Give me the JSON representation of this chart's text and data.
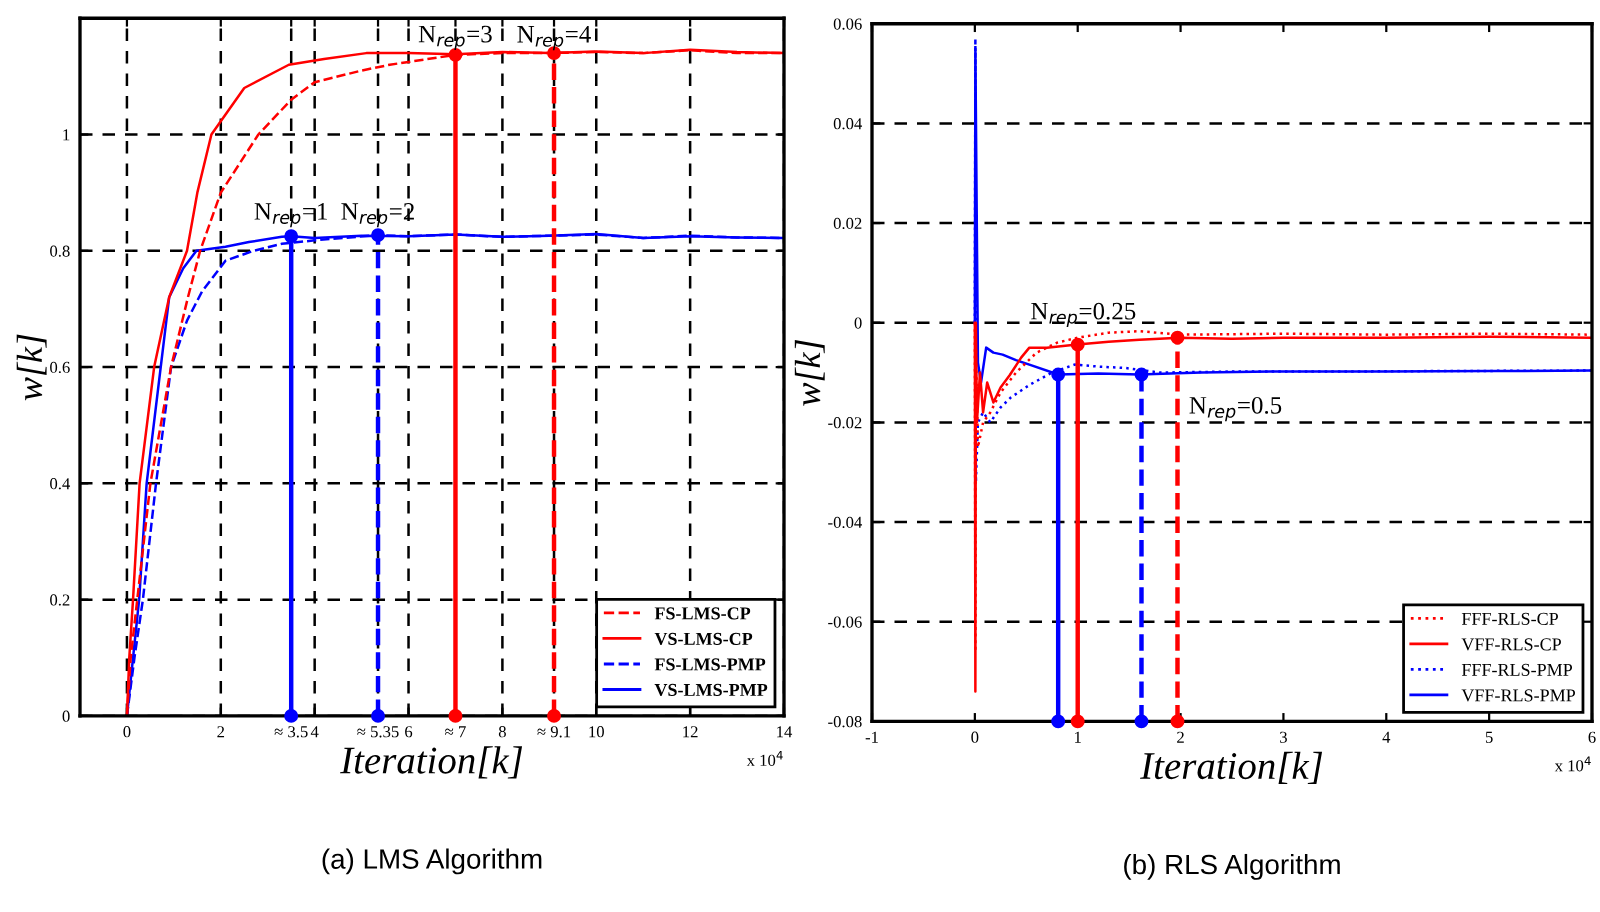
{
  "chart_data": [
    {
      "type": "line",
      "title": "(a) LMS Algorithm",
      "xlabel": "Iteration[k]",
      "ylabel": "w[k]",
      "xlim": [
        -1,
        14
      ],
      "ylim": [
        0,
        1.2
      ],
      "xticks": [
        0,
        2,
        {
          "value": 3.5,
          "label": "≈ 3.5"
        },
        4,
        {
          "value": 5.35,
          "label": "≈ 5.35"
        },
        6,
        {
          "value": 7,
          "label": "≈ 7"
        },
        8,
        {
          "value": 9.1,
          "label": "≈ 9.1"
        },
        10,
        12,
        14
      ],
      "yticks": [
        0,
        0.2,
        0.4,
        0.6,
        0.8,
        1
      ],
      "grid": true,
      "legend": "bottom right",
      "series": [
        {
          "name": "FS-LMS-CP",
          "color": "#ff0000",
          "line_style": "dashed",
          "x": [
            0,
            0.08,
            0.22,
            0.5,
            0.94,
            1.3,
            1.56,
            2.0,
            2.8,
            3.5,
            4.0,
            5.0,
            5.6,
            7,
            8,
            9,
            10,
            11,
            12,
            13,
            14
          ],
          "values": [
            0,
            0.1,
            0.2,
            0.4,
            0.6,
            0.72,
            0.8,
            0.9,
            1.0,
            1.06,
            1.09,
            1.11,
            1.12,
            1.137,
            1.14,
            1.14,
            1.142,
            1.14,
            1.145,
            1.14,
            1.14
          ]
        },
        {
          "name": "VS-LMS-CP",
          "color": "#ff0000",
          "line_style": "solid",
          "x": [
            0,
            0.05,
            0.13,
            0.27,
            0.58,
            0.9,
            1.28,
            1.5,
            1.8,
            2.5,
            3.45,
            4.2,
            5.1,
            6,
            7,
            8,
            9,
            10,
            11,
            12,
            13,
            14
          ],
          "values": [
            0,
            0.1,
            0.2,
            0.4,
            0.6,
            0.72,
            0.8,
            0.9,
            1.0,
            1.08,
            1.12,
            1.13,
            1.14,
            1.14,
            1.138,
            1.142,
            1.14,
            1.143,
            1.14,
            1.146,
            1.142,
            1.14
          ]
        },
        {
          "name": "FS-LMS-PMP",
          "color": "#0000ff",
          "line_style": "dashed",
          "x": [
            0,
            0.16,
            0.34,
            0.62,
            0.94,
            1.28,
            1.6,
            2.1,
            2.7,
            3.3,
            4,
            5.35,
            6,
            7,
            8,
            9,
            10,
            11,
            12,
            13,
            14
          ],
          "values": [
            0,
            0.1,
            0.2,
            0.4,
            0.6,
            0.68,
            0.73,
            0.783,
            0.8,
            0.812,
            0.818,
            0.827,
            0.825,
            0.828,
            0.824,
            0.826,
            0.828,
            0.822,
            0.826,
            0.823,
            0.822
          ]
        },
        {
          "name": "VS-LMS-PMP",
          "color": "#0000ff",
          "line_style": "solid",
          "x": [
            0,
            0.13,
            0.26,
            0.42,
            0.9,
            1.2,
            1.48,
            2.1,
            2.6,
            3.3,
            3.5,
            4,
            5,
            6,
            7,
            8,
            9,
            10,
            11,
            12,
            13,
            14
          ],
          "values": [
            0,
            0.1,
            0.2,
            0.4,
            0.72,
            0.77,
            0.8,
            0.807,
            0.815,
            0.824,
            0.825,
            0.822,
            0.826,
            0.825,
            0.828,
            0.824,
            0.826,
            0.829,
            0.822,
            0.825,
            0.823,
            0.822
          ]
        },
        {
          "color": "#0000ff",
          "line_style": "solid",
          "marker": "circle",
          "x": [
            3.5,
            3.5
          ],
          "values": [
            0,
            0.825
          ]
        },
        {
          "color": "#0000ff",
          "line_style": "dashed",
          "marker": "circle",
          "x": [
            5.35,
            5.35
          ],
          "values": [
            0,
            0.827
          ]
        },
        {
          "color": "#ff0000",
          "line_style": "solid",
          "marker": "circle",
          "x": [
            7,
            7
          ],
          "values": [
            0,
            1.137
          ]
        },
        {
          "color": "#ff0000",
          "line_style": "dashed",
          "marker": "circle",
          "x": [
            9.1,
            9.1
          ],
          "values": [
            0,
            1.14
          ]
        }
      ],
      "annotations": [
        {
          "text": "N$_{rep}$=1",
          "x": 3.5,
          "y": 0.84
        },
        {
          "text": "N$_{rep}$=2",
          "x": 5.35,
          "y": 0.84
        },
        {
          "text": "N$_{rep}$=3",
          "x": 7,
          "y": 1.145
        },
        {
          "text": "N$_{rep}$=4",
          "x": 9.1,
          "y": 1.145
        },
        "x 10$^{4}$"
      ]
    },
    {
      "type": "line",
      "title": "(b) RLS Algorithm",
      "xlabel": "Iteration[k]",
      "ylabel": "w[k]",
      "xlim": [
        -1,
        6
      ],
      "ylim": [
        -0.08,
        0.06
      ],
      "xticks": [
        -1,
        0,
        1,
        2,
        3,
        4,
        5,
        6
      ],
      "yticks": [
        -0.08,
        -0.06,
        -0.04,
        -0.02,
        0,
        0.02,
        0.04,
        0.06
      ],
      "grid": "y",
      "legend": "bottom right",
      "series": [
        {
          "name": "FFF-RLS-CP",
          "color": "#ff0000",
          "line_style": "dotted",
          "x": [
            0,
            0.005,
            0.01,
            0.03,
            0.08,
            0.15,
            0.25,
            0.4,
            0.6,
            0.8,
            1.0,
            1.3,
            1.6,
            2,
            3,
            4,
            5,
            6
          ],
          "values": [
            0,
            -0.066,
            -0.005,
            -0.025,
            -0.02,
            -0.018,
            -0.014,
            -0.01,
            -0.006,
            -0.004,
            -0.003,
            -0.002,
            -0.0017,
            -0.0024,
            -0.0022,
            -0.0024,
            -0.0022,
            -0.0024
          ]
        },
        {
          "name": "VFF-RLS-CP",
          "color": "#ff0000",
          "line_style": "solid",
          "x": [
            0,
            0.005,
            0.01,
            0.02,
            0.05,
            0.08,
            0.12,
            0.18,
            0.25,
            0.34,
            0.45,
            0.53,
            0.7,
            0.97,
            1.3,
            1.6,
            1.99,
            2.5,
            3,
            4,
            5,
            6
          ],
          "values": [
            0,
            -0.074,
            0.0,
            -0.02,
            -0.01,
            -0.018,
            -0.012,
            -0.016,
            -0.013,
            -0.0105,
            -0.007,
            -0.005,
            -0.005,
            -0.0044,
            -0.0038,
            -0.0034,
            -0.003,
            -0.0032,
            -0.003,
            -0.003,
            -0.0028,
            -0.003
          ]
        },
        {
          "name": "FFF-RLS-PMP",
          "color": "#0000ff",
          "line_style": "dotted",
          "x": [
            0,
            0.005,
            0.01,
            0.03,
            0.08,
            0.15,
            0.25,
            0.35,
            0.53,
            0.75,
            0.97,
            1.2,
            1.47,
            1.8,
            2.5,
            3.5,
            4.5,
            6
          ],
          "values": [
            0,
            0.057,
            -0.032,
            -0.02,
            -0.018,
            -0.02,
            -0.017,
            -0.015,
            -0.0125,
            -0.01,
            -0.0084,
            -0.0088,
            -0.0091,
            -0.01,
            -0.0098,
            -0.0098,
            -0.0097,
            -0.0096
          ]
        },
        {
          "name": "VFF-RLS-PMP",
          "color": "#0000ff",
          "line_style": "solid",
          "x": [
            0,
            0.005,
            0.03,
            0.06,
            0.11,
            0.18,
            0.27,
            0.4,
            0.53,
            0.81,
            1.2,
            1.6,
            2.2,
            2.88,
            4,
            5,
            6
          ],
          "values": [
            0,
            0.055,
            -0.008,
            -0.012,
            -0.005,
            -0.006,
            -0.0064,
            -0.0075,
            -0.0084,
            -0.0104,
            -0.0102,
            -0.0104,
            -0.01,
            -0.0098,
            -0.0098,
            -0.0097,
            -0.0096
          ]
        },
        {
          "color": "#0000ff",
          "line_style": "solid",
          "marker": "circle",
          "x": [
            0.81,
            0.81
          ],
          "values": [
            -0.08,
            -0.0104
          ]
        },
        {
          "color": "#ff0000",
          "line_style": "solid",
          "marker": "circle",
          "x": [
            1.0,
            1.0
          ],
          "values": [
            -0.08,
            -0.0044
          ]
        },
        {
          "color": "#0000ff",
          "line_style": "dashed",
          "marker": "circle",
          "x": [
            1.62,
            1.62
          ],
          "values": [
            -0.08,
            -0.0104
          ]
        },
        {
          "color": "#ff0000",
          "line_style": "dashed",
          "marker": "circle",
          "x": [
            1.97,
            1.97
          ],
          "values": [
            -0.08,
            -0.003
          ]
        }
      ],
      "annotations": [
        "N$_{rep}$=0.25",
        "N$_{rep}$=0.5",
        "x 10$^{4}$"
      ]
    }
  ]
}
